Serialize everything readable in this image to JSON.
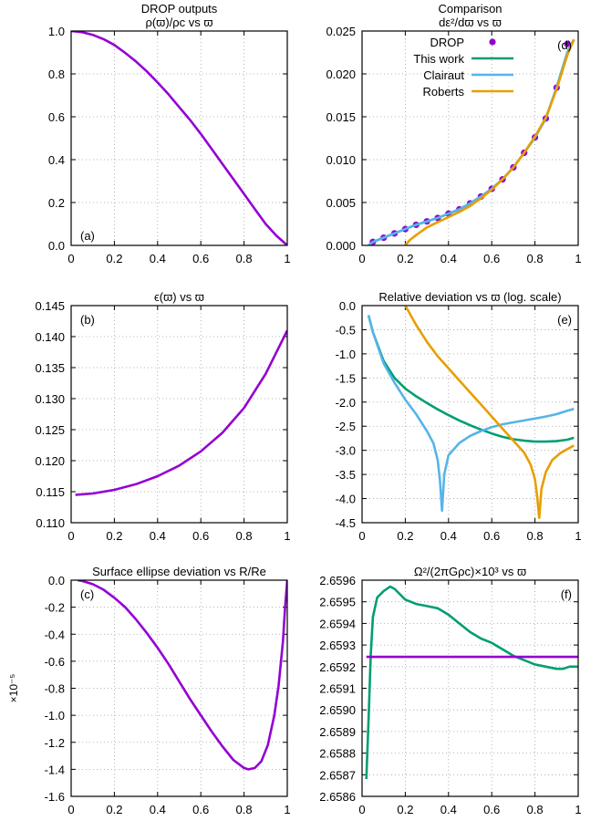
{
  "colors": {
    "purple": "#9400d3",
    "green": "#009e73",
    "blue": "#56b4e9",
    "orange": "#e69f00"
  },
  "chart_data": [
    {
      "id": "a",
      "type": "line",
      "title": "DROP outputs",
      "subtitle": "ρ(ϖ)/ρc vs ϖ",
      "panel_label": "(a)",
      "xlim": [
        0,
        1
      ],
      "ylim": [
        0,
        1
      ],
      "xticks": [
        "0",
        "0.2",
        "0.4",
        "0.6",
        "0.8",
        "1"
      ],
      "yticks": [
        "0.0",
        "0.2",
        "0.4",
        "0.6",
        "0.8",
        "1.0"
      ],
      "grid": true,
      "series": [
        {
          "color": "#9400d3",
          "x": [
            0,
            0.05,
            0.1,
            0.15,
            0.2,
            0.25,
            0.3,
            0.35,
            0.4,
            0.45,
            0.5,
            0.55,
            0.6,
            0.65,
            0.7,
            0.75,
            0.8,
            0.85,
            0.9,
            0.95,
            1.0
          ],
          "y": [
            1.0,
            0.995,
            0.982,
            0.962,
            0.935,
            0.898,
            0.858,
            0.812,
            0.76,
            0.705,
            0.645,
            0.585,
            0.52,
            0.45,
            0.38,
            0.31,
            0.24,
            0.17,
            0.1,
            0.045,
            0.0
          ]
        }
      ]
    },
    {
      "id": "d",
      "type": "line",
      "title": "Comparison",
      "subtitle": "dε²/dϖ vs ϖ",
      "panel_label": "(d)",
      "xlim": [
        0,
        1
      ],
      "ylim": [
        0,
        0.025
      ],
      "xticks": [
        "0",
        "0.2",
        "0.4",
        "0.6",
        "0.8",
        "1"
      ],
      "yticks": [
        "0.000",
        "0.005",
        "0.010",
        "0.015",
        "0.020",
        "0.025"
      ],
      "grid": true,
      "legend": [
        "DROP",
        "This work",
        "Clairaut",
        "Roberts"
      ],
      "legend_position": "top-left",
      "series": [
        {
          "name": "DROP",
          "color": "#9400d3",
          "style": "points",
          "x": [
            0.05,
            0.1,
            0.15,
            0.2,
            0.25,
            0.3,
            0.35,
            0.4,
            0.45,
            0.5,
            0.55,
            0.6,
            0.65,
            0.7,
            0.75,
            0.8,
            0.85,
            0.9,
            0.95
          ],
          "y": [
            0.0004,
            0.0009,
            0.0014,
            0.0019,
            0.0024,
            0.0028,
            0.0032,
            0.0037,
            0.0042,
            0.0049,
            0.0057,
            0.0066,
            0.0077,
            0.0091,
            0.0108,
            0.0126,
            0.0148,
            0.0184,
            0.0235
          ]
        },
        {
          "name": "This work",
          "color": "#009e73",
          "style": "line",
          "x": [
            0.05,
            0.1,
            0.15,
            0.2,
            0.25,
            0.3,
            0.35,
            0.4,
            0.45,
            0.5,
            0.55,
            0.6,
            0.65,
            0.7,
            0.75,
            0.8,
            0.85,
            0.9,
            0.95,
            0.98
          ],
          "y": [
            0.0004,
            0.0009,
            0.0014,
            0.0019,
            0.0024,
            0.0028,
            0.0032,
            0.0037,
            0.0042,
            0.0049,
            0.0057,
            0.0066,
            0.0077,
            0.0091,
            0.0108,
            0.0126,
            0.0148,
            0.0184,
            0.0225,
            0.024
          ]
        },
        {
          "name": "Clairaut",
          "color": "#56b4e9",
          "style": "line",
          "x": [
            0.03,
            0.05,
            0.1,
            0.15,
            0.2,
            0.25,
            0.3,
            0.35,
            0.4,
            0.45,
            0.5,
            0.55,
            0.6,
            0.65,
            0.7,
            0.75,
            0.8,
            0.85,
            0.9,
            0.95,
            0.98
          ],
          "y": [
            0.0,
            0.0004,
            0.0009,
            0.0014,
            0.0019,
            0.0024,
            0.0028,
            0.0032,
            0.0037,
            0.0042,
            0.0049,
            0.0057,
            0.0066,
            0.0077,
            0.0091,
            0.0108,
            0.0126,
            0.0148,
            0.0184,
            0.0225,
            0.024
          ]
        },
        {
          "name": "Roberts",
          "color": "#e69f00",
          "style": "line",
          "x": [
            0.2,
            0.22,
            0.25,
            0.3,
            0.35,
            0.4,
            0.45,
            0.5,
            0.55,
            0.6,
            0.65,
            0.7,
            0.75,
            0.8,
            0.85,
            0.9,
            0.95,
            0.98
          ],
          "y": [
            0.0,
            0.0006,
            0.0012,
            0.0021,
            0.0027,
            0.0033,
            0.0039,
            0.0046,
            0.0055,
            0.0065,
            0.0077,
            0.0091,
            0.0108,
            0.0127,
            0.0149,
            0.0182,
            0.0222,
            0.024
          ]
        }
      ]
    },
    {
      "id": "b",
      "type": "line",
      "title": "ϵ(ϖ) vs ϖ",
      "panel_label": "(b)",
      "xlim": [
        0,
        1
      ],
      "ylim": [
        0.11,
        0.145
      ],
      "xticks": [
        "0",
        "0.2",
        "0.4",
        "0.6",
        "0.8",
        "1"
      ],
      "yticks": [
        "0.110",
        "0.115",
        "0.120",
        "0.125",
        "0.130",
        "0.135",
        "0.140",
        "0.145"
      ],
      "grid": true,
      "series": [
        {
          "color": "#9400d3",
          "x": [
            0.02,
            0.1,
            0.2,
            0.3,
            0.4,
            0.5,
            0.6,
            0.7,
            0.8,
            0.9,
            1.0
          ],
          "y": [
            0.1145,
            0.1147,
            0.1153,
            0.1162,
            0.1175,
            0.1192,
            0.1215,
            0.1245,
            0.1285,
            0.134,
            0.141
          ]
        }
      ]
    },
    {
      "id": "e",
      "type": "line",
      "title": "Relative deviation vs ϖ (log. scale)",
      "panel_label": "(e)",
      "xlim": [
        0,
        1
      ],
      "ylim": [
        -4.5,
        0
      ],
      "xticks": [
        "0",
        "0.2",
        "0.4",
        "0.6",
        "0.8",
        "1"
      ],
      "yticks": [
        "-4.5",
        "-4.0",
        "-3.5",
        "-3.0",
        "-2.5",
        "-2.0",
        "-1.5",
        "-1.0",
        "-0.5",
        "0.0"
      ],
      "grid": true,
      "series": [
        {
          "name": "This work",
          "color": "#009e73",
          "x": [
            0.03,
            0.05,
            0.1,
            0.15,
            0.2,
            0.25,
            0.3,
            0.35,
            0.4,
            0.45,
            0.5,
            0.55,
            0.6,
            0.65,
            0.7,
            0.75,
            0.8,
            0.85,
            0.9,
            0.95,
            0.98
          ],
          "y": [
            -0.2,
            -0.55,
            -1.15,
            -1.5,
            -1.72,
            -1.88,
            -2.02,
            -2.15,
            -2.27,
            -2.38,
            -2.48,
            -2.57,
            -2.65,
            -2.72,
            -2.77,
            -2.8,
            -2.82,
            -2.82,
            -2.81,
            -2.78,
            -2.74
          ]
        },
        {
          "name": "Clairaut",
          "color": "#56b4e9",
          "x": [
            0.03,
            0.05,
            0.1,
            0.15,
            0.2,
            0.25,
            0.3,
            0.33,
            0.35,
            0.36,
            0.37,
            0.38,
            0.4,
            0.45,
            0.5,
            0.55,
            0.6,
            0.65,
            0.7,
            0.75,
            0.8,
            0.85,
            0.9,
            0.95,
            0.98
          ],
          "y": [
            -0.2,
            -0.55,
            -1.2,
            -1.6,
            -1.95,
            -2.25,
            -2.6,
            -2.85,
            -3.2,
            -3.6,
            -4.25,
            -3.5,
            -3.1,
            -2.85,
            -2.7,
            -2.6,
            -2.52,
            -2.46,
            -2.42,
            -2.38,
            -2.34,
            -2.3,
            -2.25,
            -2.18,
            -2.14
          ]
        },
        {
          "name": "Roberts",
          "color": "#e69f00",
          "x": [
            0.2,
            0.25,
            0.3,
            0.35,
            0.4,
            0.45,
            0.5,
            0.55,
            0.6,
            0.65,
            0.7,
            0.75,
            0.78,
            0.8,
            0.81,
            0.82,
            0.83,
            0.85,
            0.88,
            0.92,
            0.98
          ],
          "y": [
            0.0,
            -0.4,
            -0.75,
            -1.05,
            -1.3,
            -1.55,
            -1.8,
            -2.05,
            -2.3,
            -2.55,
            -2.8,
            -3.05,
            -3.3,
            -3.6,
            -3.95,
            -4.4,
            -3.8,
            -3.45,
            -3.2,
            -3.05,
            -2.9
          ]
        }
      ]
    },
    {
      "id": "c",
      "type": "line",
      "title": "Surface ellipse deviation vs R/Re",
      "panel_label": "(c)",
      "ylabel": "×10⁻⁵",
      "xlim": [
        0,
        1
      ],
      "ylim": [
        -1.6,
        0
      ],
      "xticks": [
        "0",
        "0.2",
        "0.4",
        "0.6",
        "0.8",
        "1"
      ],
      "yticks": [
        "-1.6",
        "-1.4",
        "-1.2",
        "-1.0",
        "-0.8",
        "-0.6",
        "-0.4",
        "-0.2",
        "0.0"
      ],
      "grid": true,
      "series": [
        {
          "color": "#9400d3",
          "x": [
            0.03,
            0.05,
            0.1,
            0.15,
            0.2,
            0.25,
            0.3,
            0.35,
            0.4,
            0.45,
            0.5,
            0.55,
            0.6,
            0.65,
            0.7,
            0.75,
            0.8,
            0.82,
            0.85,
            0.88,
            0.91,
            0.94,
            0.96,
            0.98,
            0.99,
            1.0
          ],
          "y": [
            0.0,
            -0.005,
            -0.03,
            -0.07,
            -0.13,
            -0.2,
            -0.29,
            -0.39,
            -0.5,
            -0.62,
            -0.75,
            -0.88,
            -1.0,
            -1.12,
            -1.23,
            -1.33,
            -1.39,
            -1.4,
            -1.39,
            -1.34,
            -1.22,
            -1.0,
            -0.78,
            -0.45,
            -0.2,
            0.0
          ]
        }
      ]
    },
    {
      "id": "f",
      "type": "line",
      "title": "Ω²/(2πGρc)×10³ vs ϖ",
      "panel_label": "(f)",
      "xlim": [
        0,
        1
      ],
      "ylim": [
        2.6586,
        2.6596
      ],
      "xticks": [
        "0",
        "0.2",
        "0.4",
        "0.6",
        "0.8",
        "1"
      ],
      "yticks": [
        "2.6586",
        "2.6587",
        "2.6588",
        "2.6589",
        "2.6590",
        "2.6591",
        "2.6592",
        "2.6593",
        "2.6594",
        "2.6595",
        "2.6596"
      ],
      "grid": true,
      "series": [
        {
          "name": "This work",
          "color": "#009e73",
          "x": [
            0.02,
            0.03,
            0.04,
            0.05,
            0.07,
            0.1,
            0.13,
            0.15,
            0.2,
            0.25,
            0.3,
            0.35,
            0.4,
            0.45,
            0.5,
            0.55,
            0.6,
            0.65,
            0.7,
            0.75,
            0.8,
            0.85,
            0.9,
            0.93,
            0.96,
            1.0
          ],
          "y": [
            2.65868,
            2.65895,
            2.65925,
            2.65943,
            2.65952,
            2.65955,
            2.65957,
            2.65956,
            2.65951,
            2.65949,
            2.65948,
            2.65947,
            2.65944,
            2.6594,
            2.65936,
            2.65933,
            2.65931,
            2.65928,
            2.65925,
            2.65923,
            2.65921,
            2.6592,
            2.65919,
            2.65919,
            2.6592,
            2.6592
          ]
        },
        {
          "name": "DROP",
          "color": "#9400d3",
          "x": [
            0.02,
            1.0
          ],
          "y": [
            2.659245,
            2.659245
          ]
        }
      ]
    }
  ]
}
